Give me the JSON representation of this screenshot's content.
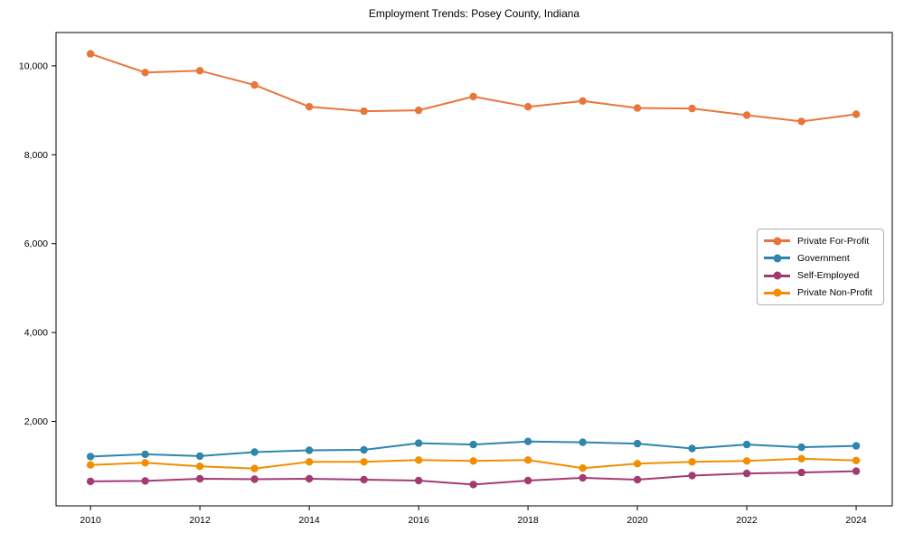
{
  "title": "Employment Trends: Posey County, Indiana",
  "chart_data": {
    "type": "line",
    "title": "Employment Trends: Posey County, Indiana",
    "xlabel": "",
    "ylabel": "",
    "grid": false,
    "legend_position": "center right",
    "marker": "circle",
    "x": [
      2010,
      2011,
      2012,
      2013,
      2014,
      2015,
      2016,
      2017,
      2018,
      2019,
      2020,
      2021,
      2022,
      2023,
      2024
    ],
    "series": [
      {
        "name": "Private For-Profit",
        "color": "#E8763B",
        "values": [
          10270,
          9850,
          9890,
          9570,
          9080,
          8980,
          9000,
          9310,
          9080,
          9210,
          9050,
          9040,
          8890,
          8750,
          8910
        ]
      },
      {
        "name": "Government",
        "color": "#2E86AB",
        "values": [
          1210,
          1260,
          1220,
          1310,
          1350,
          1360,
          1510,
          1480,
          1550,
          1530,
          1500,
          1390,
          1480,
          1420,
          1450
        ]
      },
      {
        "name": "Self-Employed",
        "color": "#A23B72",
        "values": [
          650,
          660,
          710,
          700,
          710,
          690,
          670,
          580,
          670,
          730,
          690,
          780,
          830,
          850,
          880
        ]
      },
      {
        "name": "Private Non-Profit",
        "color": "#F18F01",
        "values": [
          1020,
          1070,
          990,
          940,
          1090,
          1090,
          1130,
          1110,
          1130,
          950,
          1050,
          1090,
          1110,
          1160,
          1120
        ]
      }
    ],
    "xticks": [
      2010,
      2012,
      2014,
      2016,
      2018,
      2020,
      2022,
      2024
    ],
    "xtick_labels": [
      "2010",
      "2012",
      "2014",
      "2016",
      "2018",
      "2020",
      "2022",
      "2024"
    ],
    "yticks": [
      2000,
      4000,
      6000,
      8000,
      10000
    ],
    "ytick_labels": [
      "2,000",
      "4,000",
      "6,000",
      "8,000",
      "10,000"
    ],
    "xlim": [
      2009.37,
      2024.66
    ],
    "ylim": [
      100,
      10750
    ]
  }
}
